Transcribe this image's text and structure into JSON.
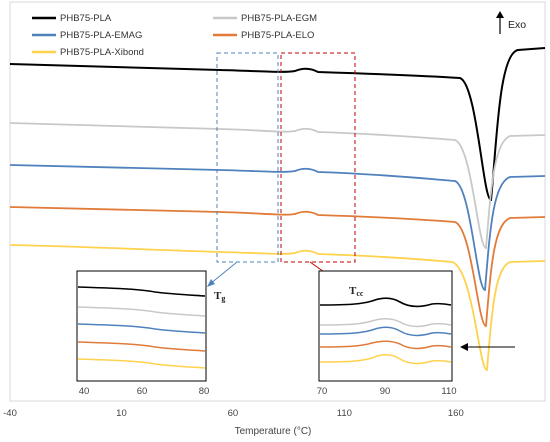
{
  "chart_data": {
    "type": "line",
    "title": "",
    "xlabel": "Temperature (°C)",
    "ylabel": "",
    "xlim": [
      -40,
      200
    ],
    "x_ticks": [
      "-40",
      "10",
      "60",
      "110",
      "160"
    ],
    "legend_position": "top-left",
    "exo_label": "Exo",
    "series": [
      {
        "name": "PHB75-PLA",
        "color": "#000000",
        "id": "pla"
      },
      {
        "name": "PHB75-PLA-EGM",
        "color": "#c8c8c8",
        "id": "egm"
      },
      {
        "name": "PHB75-PLA-EMAG",
        "color": "#4f81bd",
        "id": "emag"
      },
      {
        "name": "PHB75-PLA-ELO",
        "color": "#e07b39",
        "id": "elo"
      },
      {
        "name": "PHB75-PLA-Xibond",
        "color": "#ffd24d",
        "id": "xib"
      }
    ],
    "insets": [
      {
        "label": "Tg",
        "xlim": [
          40,
          80
        ],
        "x_ticks": [
          "40",
          "60",
          "80"
        ],
        "box_color": "#4f81bd"
      },
      {
        "label": "Tcc",
        "xlim": [
          70,
          110
        ],
        "x_ticks": [
          "70",
          "90",
          "110"
        ],
        "box_color": "#c00000"
      }
    ]
  }
}
